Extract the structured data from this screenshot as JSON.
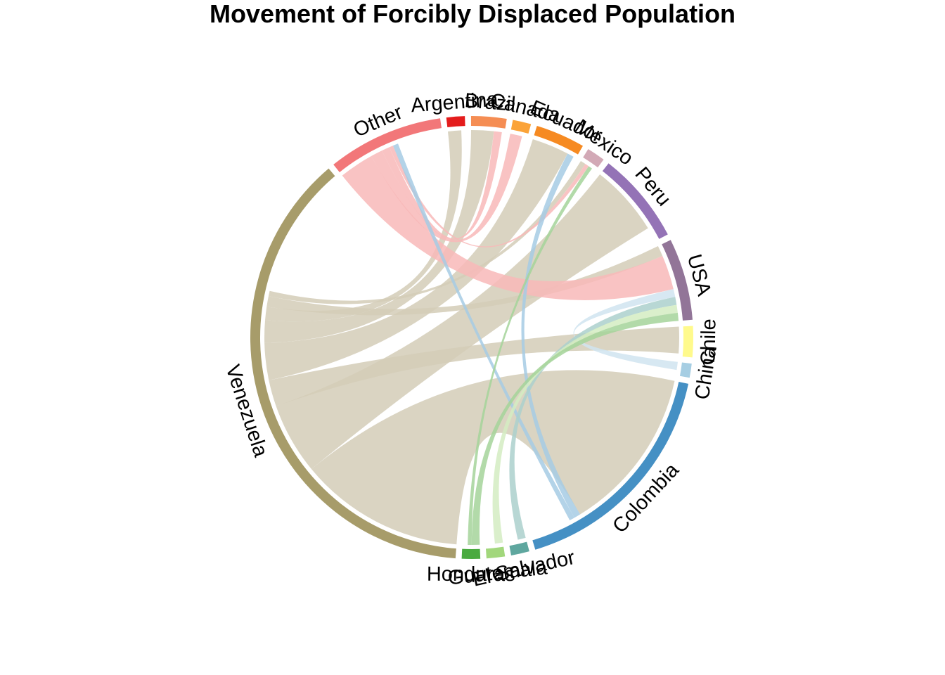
{
  "chart_data": {
    "type": "chord",
    "title": "Movement of Forcibly Displaced Population",
    "sectors": [
      {
        "name": "Chile",
        "share": 2.2,
        "color": "#fffa8c"
      },
      {
        "name": "China",
        "share": 1.0,
        "color": "#a6cee3"
      },
      {
        "name": "Colombia",
        "share": 16.5,
        "color": "#4590c4"
      },
      {
        "name": "El Salvador",
        "share": 1.3,
        "color": "#5fa79f"
      },
      {
        "name": "Guatemala",
        "share": 1.3,
        "color": "#a2d77c"
      },
      {
        "name": "Honduras",
        "share": 1.3,
        "color": "#4aaa40"
      },
      {
        "name": "Venezuela",
        "share": 36.5,
        "color": "#a79c6a"
      },
      {
        "name": "Other",
        "share": 8.2,
        "color": "#f27779"
      },
      {
        "name": "Argentina",
        "share": 1.3,
        "color": "#e41c1c"
      },
      {
        "name": "Brazil",
        "share": 2.5,
        "color": "#f58d53"
      },
      {
        "name": "Canada",
        "share": 1.3,
        "color": "#fba338"
      },
      {
        "name": "Ecuador",
        "share": 3.5,
        "color": "#f68a22"
      },
      {
        "name": "Mexico",
        "share": 1.3,
        "color": "#d2a9b6"
      },
      {
        "name": "Peru",
        "share": 6.5,
        "color": "#9473b6"
      },
      {
        "name": "USA",
        "share": 5.8,
        "color": "#927598"
      }
    ],
    "flows": [
      {
        "from": "Venezuela",
        "to": "Colombia",
        "value": 12.5,
        "color": "#d3cdb7"
      },
      {
        "from": "Venezuela",
        "to": "Peru",
        "value": 5.4,
        "color": "#d3cdb7"
      },
      {
        "from": "Venezuela",
        "to": "Chile",
        "value": 2.0,
        "color": "#d3cdb7"
      },
      {
        "from": "Venezuela",
        "to": "Ecuador",
        "value": 2.8,
        "color": "#d3cdb7"
      },
      {
        "from": "Venezuela",
        "to": "Brazil",
        "value": 1.7,
        "color": "#d3cdb7"
      },
      {
        "from": "Venezuela",
        "to": "Argentina",
        "value": 1.0,
        "color": "#d3cdb7"
      },
      {
        "from": "Venezuela",
        "to": "USA",
        "value": 0.8,
        "color": "#d3cdb7"
      },
      {
        "from": "Venezuela",
        "to": "Mexico",
        "value": 0.4,
        "color": "#d3cdb7"
      },
      {
        "from": "Other",
        "to": "USA",
        "value": 2.6,
        "color": "#f8b9b9"
      },
      {
        "from": "Other",
        "to": "Canada",
        "value": 0.9,
        "color": "#f8b9b9"
      },
      {
        "from": "Other",
        "to": "Brazil",
        "value": 0.6,
        "color": "#f8b9b9"
      },
      {
        "from": "Other",
        "to": "Mexico",
        "value": 0.3,
        "color": "#f8b9b9"
      },
      {
        "from": "Colombia",
        "to": "Ecuador",
        "value": 0.5,
        "color": "#a6cbe4"
      },
      {
        "from": "Colombia",
        "to": "Other",
        "value": 0.4,
        "color": "#a6cbe4"
      },
      {
        "from": "China",
        "to": "USA",
        "value": 0.6,
        "color": "#d0e4f0"
      },
      {
        "from": "El Salvador",
        "to": "USA",
        "value": 0.6,
        "color": "#acd0cc"
      },
      {
        "from": "Guatemala",
        "to": "USA",
        "value": 0.6,
        "color": "#d3ecc2"
      },
      {
        "from": "Honduras",
        "to": "USA",
        "value": 0.6,
        "color": "#a4d49a"
      },
      {
        "from": "Honduras",
        "to": "Mexico",
        "value": 0.3,
        "color": "#a4d49a"
      }
    ]
  }
}
